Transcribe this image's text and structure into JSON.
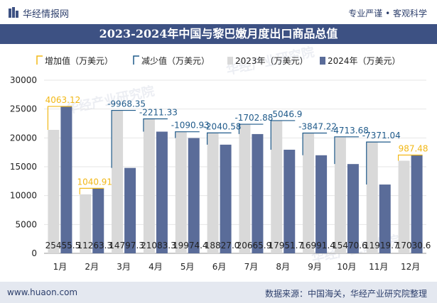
{
  "header": {
    "brand": "华经情报网",
    "slogan": "专业严谨 • 客观科学"
  },
  "footer": {
    "website": "www.huaon.com",
    "source": "数据来源：中国海关，华经产业研究院整理"
  },
  "watermark": "华经产业研究院",
  "colors": {
    "increase": "#f2b817",
    "decrease": "#1f5a8a",
    "series_2023": "#d9d9d9",
    "series_2024": "#5a6c99",
    "title_bar": "#3d5183",
    "footer_bar": "#e4e8f0"
  },
  "chart_data": {
    "type": "bar",
    "title": "2023-2024年中国与黎巴嫩月度出口商品总值",
    "xlabel": "",
    "ylabel": "",
    "ylim": [
      0,
      30000
    ],
    "yticks": [
      0,
      5000,
      10000,
      15000,
      20000,
      25000,
      30000
    ],
    "categories": [
      "1月",
      "2月",
      "3月",
      "4月",
      "5月",
      "6月",
      "7月",
      "8月",
      "9月",
      "10月",
      "11月",
      "12月"
    ],
    "legend": [
      "增加值（万美元）",
      "减少值（万美元）",
      "2023年（万美元）",
      "2024年（万美元）"
    ],
    "series": [
      {
        "name": "2023年（万美元）",
        "values": [
          21392.4,
          10222.4,
          24765.7,
          23294.6,
          21065.3,
          20867.6,
          22368.8,
          22998.6,
          20838.6,
          20184.3,
          19290.7,
          16043.1
        ]
      },
      {
        "name": "2024年（万美元）",
        "values": [
          25455.5,
          11263.3,
          14797.3,
          21083.3,
          19974.4,
          18827.0,
          20665.9,
          17951.7,
          16991.4,
          15470.6,
          11919.7,
          17030.6
        ]
      }
    ],
    "changes": [
      "4063.12",
      "1040.91",
      "-9968.35",
      "-2211.33",
      "-1090.93",
      "-2040.58",
      "-1702.88",
      "-5046.9",
      "-3847.22",
      "-4713.68",
      "-7371.04",
      "987.48"
    ],
    "value_labels_2024": [
      "25455.5",
      "11263.3",
      "14797.3",
      "21083.3",
      "19974.4",
      "18827.0",
      "20665.9",
      "17951.7",
      "16991.4",
      "15470.6",
      "11919.7",
      "17030.6"
    ]
  }
}
